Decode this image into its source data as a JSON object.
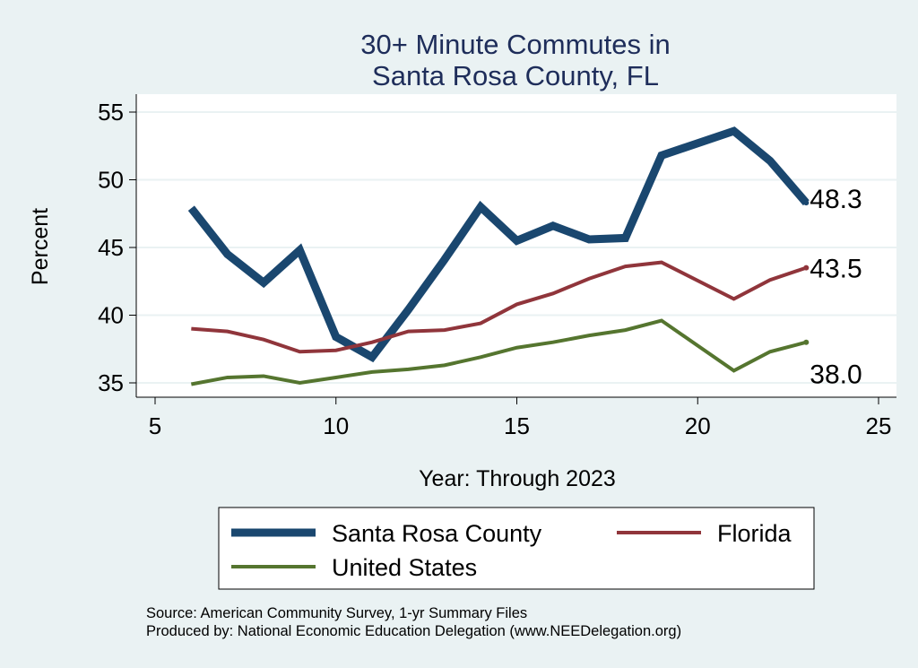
{
  "chart_data": {
    "type": "line",
    "title": [
      "30+ Minute Commutes in",
      "Santa Rosa County, FL"
    ],
    "xlabel": "Year: Through 2023",
    "ylabel": "Percent",
    "xlim": [
      5,
      25
    ],
    "ylim": [
      35,
      55
    ],
    "xticks": [
      5,
      10,
      15,
      20,
      25
    ],
    "yticks": [
      35,
      40,
      45,
      50,
      55
    ],
    "grid": true,
    "legend_placement": "bottom",
    "series": [
      {
        "name": "Santa Rosa County",
        "color": "#1a476f",
        "width": 9,
        "x": [
          6,
          7,
          8,
          9,
          10,
          11,
          12,
          13,
          14,
          15,
          16,
          17,
          18,
          19,
          21,
          22,
          23
        ],
        "y": [
          47.9,
          44.5,
          42.4,
          44.8,
          38.4,
          36.9,
          40.4,
          44.1,
          48.0,
          45.5,
          46.6,
          45.6,
          45.7,
          51.8,
          53.6,
          51.4,
          48.3
        ],
        "end_label": "48.3"
      },
      {
        "name": "Florida",
        "color": "#90353b",
        "width": 4,
        "x": [
          6,
          7,
          8,
          9,
          10,
          11,
          12,
          13,
          14,
          15,
          16,
          17,
          18,
          19,
          21,
          22,
          23
        ],
        "y": [
          39.0,
          38.8,
          38.2,
          37.3,
          37.4,
          38.0,
          38.8,
          38.9,
          39.4,
          40.8,
          41.6,
          42.7,
          43.6,
          43.9,
          41.2,
          42.6,
          43.5
        ],
        "end_label": "43.5"
      },
      {
        "name": "United States",
        "color": "#55752f",
        "width": 4,
        "x": [
          6,
          7,
          8,
          9,
          10,
          11,
          12,
          13,
          14,
          15,
          16,
          17,
          18,
          19,
          21,
          22,
          23
        ],
        "y": [
          34.9,
          35.4,
          35.5,
          35.0,
          35.4,
          35.8,
          36.0,
          36.3,
          36.9,
          37.6,
          38.0,
          38.5,
          38.9,
          39.6,
          35.9,
          37.3,
          38.0
        ],
        "end_label": "38.0"
      }
    ],
    "notes": [
      "Source: American Community Survey, 1-yr Summary Files",
      "Produced by: National Economic Education Delegation (www.NEEDelegation.org)"
    ]
  }
}
